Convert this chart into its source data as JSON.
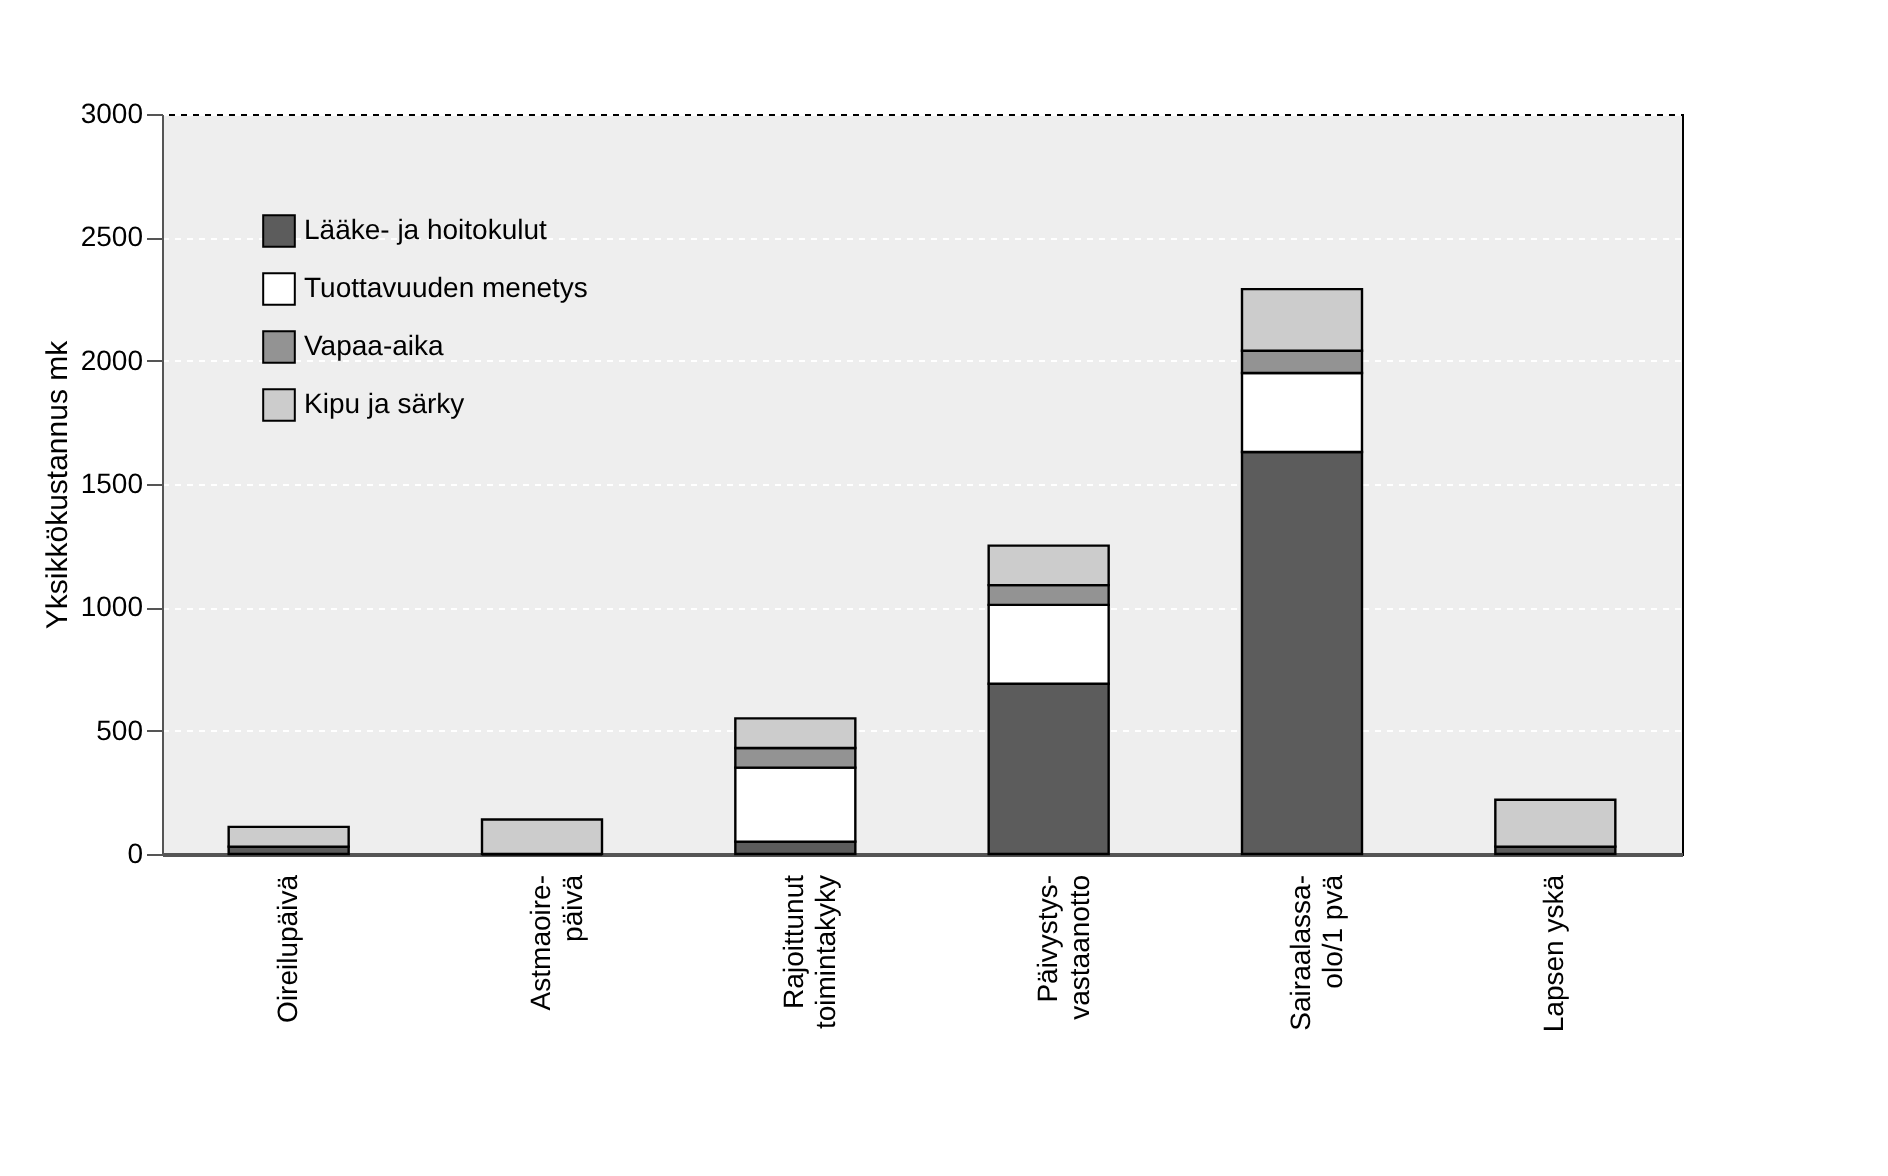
{
  "chart_data": {
    "type": "bar",
    "stacked": true,
    "ylabel": "Yksikkökustannus mk",
    "categories": [
      "Oireilupäivä",
      "Astmaoire-\npäivä",
      "Rajoittunut\ntoimintakyky",
      "Päivystys-\nvastaanotto",
      "Sairaalassa-\nolo/1 pvä",
      "Lapsen yskä"
    ],
    "series": [
      {
        "name": "Lääke- ja hoitokulut",
        "color": "#5c5c5c",
        "values": [
          30,
          0,
          50,
          690,
          1630,
          30
        ]
      },
      {
        "name": "Tuottavuuden menetys",
        "color": "#ffffff",
        "values": [
          0,
          0,
          300,
          320,
          320,
          0
        ]
      },
      {
        "name": "Vapaa-aika",
        "color": "#939393",
        "values": [
          0,
          0,
          80,
          80,
          90,
          0
        ]
      },
      {
        "name": "Kipu ja särky",
        "color": "#cccccc",
        "values": [
          80,
          140,
          120,
          160,
          250,
          190
        ]
      }
    ],
    "ylim": [
      0,
      3000
    ],
    "yticks": [
      0,
      500,
      1000,
      1500,
      2000,
      2500,
      3000
    ],
    "grid": "y",
    "legend": "top left"
  }
}
